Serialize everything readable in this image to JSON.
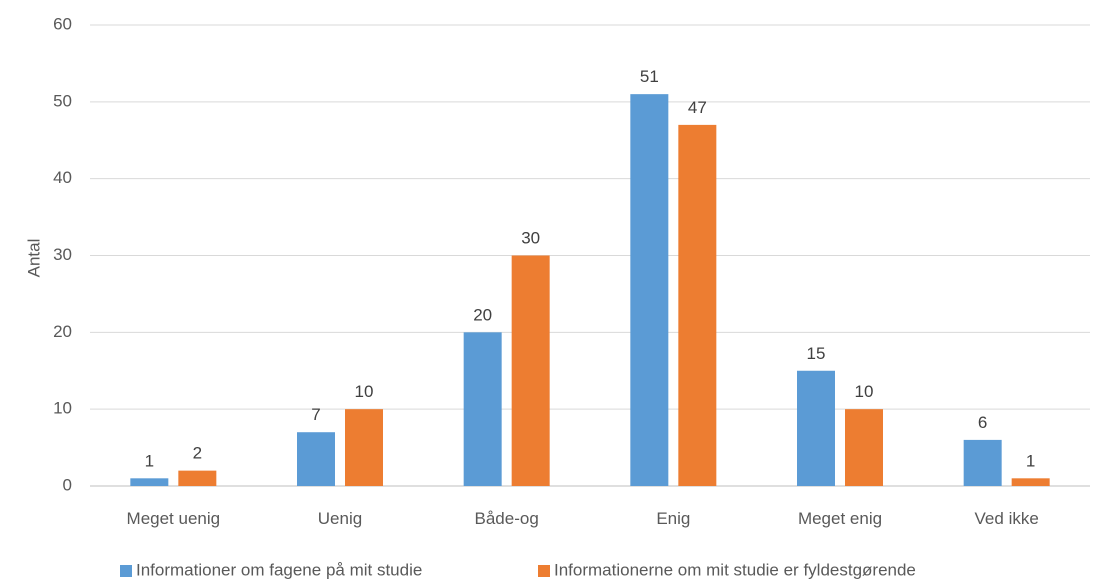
{
  "chart_data": {
    "type": "bar",
    "title": "",
    "xlabel": "",
    "ylabel": "Antal",
    "ylim": [
      0,
      60
    ],
    "yticks": [
      0,
      10,
      20,
      30,
      40,
      50,
      60
    ],
    "grid": true,
    "legend_position": "bottom",
    "categories": [
      "Meget uenig",
      "Uenig",
      "Både-og",
      "Enig",
      "Meget enig",
      "Ved ikke"
    ],
    "series": [
      {
        "name": "Informationer om fagene på mit studie",
        "color": "#5B9BD5",
        "values": [
          1,
          7,
          20,
          51,
          15,
          6
        ]
      },
      {
        "name": "Informationerne om mit studie er fyldestgørende",
        "color": "#ED7D31",
        "values": [
          2,
          10,
          30,
          47,
          10,
          1
        ]
      }
    ]
  }
}
